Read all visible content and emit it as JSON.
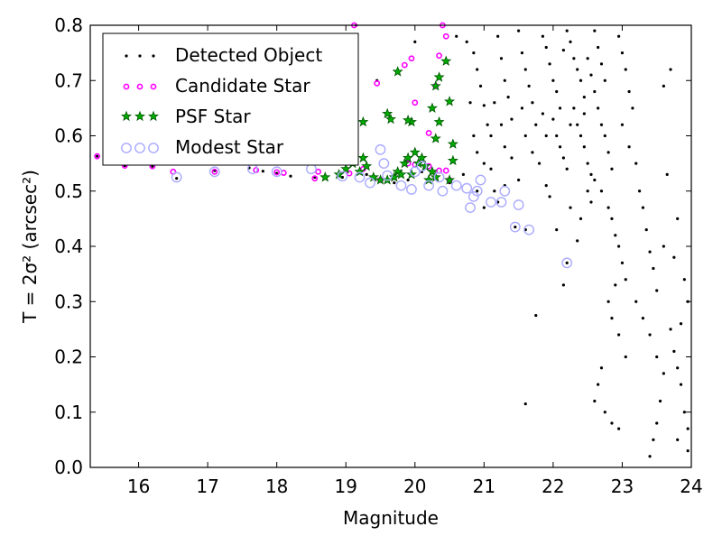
{
  "chart_data": {
    "type": "scatter",
    "title": "",
    "xlabel": "Magnitude",
    "ylabel": "T = 2σ² (arcsec²)",
    "xlim": [
      15.3,
      24.0
    ],
    "ylim": [
      0.0,
      0.8
    ],
    "xticks": [
      "16",
      "17",
      "18",
      "19",
      "20",
      "21",
      "22",
      "23",
      "24"
    ],
    "yticks": [
      "0.0",
      "0.1",
      "0.2",
      "0.3",
      "0.4",
      "0.5",
      "0.6",
      "0.7",
      "0.8"
    ],
    "grid": false,
    "legend_position": "top-left",
    "series": [
      {
        "name": "Detected Object",
        "color": "#000000",
        "marker": "dot",
        "points": [
          [
            15.4,
            0.563
          ],
          [
            15.8,
            0.546
          ],
          [
            16.2,
            0.545
          ],
          [
            16.55,
            0.523
          ],
          [
            17.1,
            0.537
          ],
          [
            17.6,
            0.542
          ],
          [
            17.8,
            0.536
          ],
          [
            18.0,
            0.532
          ],
          [
            18.2,
            0.527
          ],
          [
            18.55,
            0.525
          ],
          [
            18.95,
            0.525
          ],
          [
            19.3,
            0.53
          ],
          [
            19.5,
            0.52
          ],
          [
            19.7,
            0.515
          ],
          [
            19.9,
            0.52
          ],
          [
            20.1,
            0.535
          ],
          [
            20.3,
            0.525
          ],
          [
            20.5,
            0.515
          ],
          [
            20.7,
            0.53
          ],
          [
            20.9,
            0.5
          ],
          [
            21.0,
            0.47
          ],
          [
            21.2,
            0.48
          ],
          [
            21.45,
            0.435
          ],
          [
            21.6,
            0.43
          ],
          [
            22.2,
            0.37
          ],
          [
            19.15,
            0.8
          ],
          [
            19.45,
            0.7
          ],
          [
            20.0,
            0.77
          ],
          [
            20.6,
            0.78
          ],
          [
            20.75,
            0.77
          ],
          [
            20.85,
            0.75
          ],
          [
            20.9,
            0.72
          ],
          [
            20.95,
            0.69
          ],
          [
            21.0,
            0.655
          ],
          [
            21.05,
            0.62
          ],
          [
            21.1,
            0.6
          ],
          [
            20.8,
            0.66
          ],
          [
            20.85,
            0.6
          ],
          [
            20.9,
            0.57
          ],
          [
            21.0,
            0.55
          ],
          [
            21.1,
            0.54
          ],
          [
            21.2,
            0.78
          ],
          [
            21.25,
            0.74
          ],
          [
            21.3,
            0.7
          ],
          [
            21.35,
            0.67
          ],
          [
            21.4,
            0.63
          ],
          [
            21.3,
            0.58
          ],
          [
            21.4,
            0.56
          ],
          [
            21.5,
            0.79
          ],
          [
            21.55,
            0.75
          ],
          [
            21.6,
            0.72
          ],
          [
            21.65,
            0.69
          ],
          [
            21.7,
            0.66
          ],
          [
            21.75,
            0.62
          ],
          [
            21.6,
            0.6
          ],
          [
            21.7,
            0.57
          ],
          [
            21.8,
            0.55
          ],
          [
            21.85,
            0.78
          ],
          [
            21.9,
            0.76
          ],
          [
            21.95,
            0.73
          ],
          [
            22.0,
            0.7
          ],
          [
            22.05,
            0.68
          ],
          [
            22.1,
            0.65
          ],
          [
            22.0,
            0.63
          ],
          [
            22.05,
            0.6
          ],
          [
            22.1,
            0.58
          ],
          [
            22.15,
            0.56
          ],
          [
            22.2,
            0.54
          ],
          [
            22.2,
            0.79
          ],
          [
            22.25,
            0.77
          ],
          [
            22.3,
            0.74
          ],
          [
            22.35,
            0.72
          ],
          [
            22.4,
            0.7
          ],
          [
            22.45,
            0.67
          ],
          [
            22.3,
            0.65
          ],
          [
            22.35,
            0.62
          ],
          [
            22.4,
            0.6
          ],
          [
            22.45,
            0.58
          ],
          [
            22.5,
            0.55
          ],
          [
            22.55,
            0.53
          ],
          [
            22.5,
            0.5
          ],
          [
            22.55,
            0.48
          ],
          [
            22.6,
            0.79
          ],
          [
            22.65,
            0.76
          ],
          [
            22.7,
            0.73
          ],
          [
            22.75,
            0.7
          ],
          [
            22.6,
            0.68
          ],
          [
            22.65,
            0.65
          ],
          [
            22.7,
            0.62
          ],
          [
            22.75,
            0.6
          ],
          [
            22.8,
            0.57
          ],
          [
            22.85,
            0.54
          ],
          [
            22.6,
            0.52
          ],
          [
            22.7,
            0.5
          ],
          [
            22.8,
            0.47
          ],
          [
            22.85,
            0.45
          ],
          [
            22.9,
            0.42
          ],
          [
            22.95,
            0.4
          ],
          [
            23.0,
            0.37
          ],
          [
            23.05,
            0.34
          ],
          [
            22.95,
            0.78
          ],
          [
            23.0,
            0.75
          ],
          [
            23.05,
            0.72
          ],
          [
            23.1,
            0.68
          ],
          [
            23.15,
            0.65
          ],
          [
            23.0,
            0.62
          ],
          [
            23.1,
            0.58
          ],
          [
            23.2,
            0.55
          ],
          [
            23.25,
            0.5
          ],
          [
            23.3,
            0.47
          ],
          [
            23.35,
            0.43
          ],
          [
            23.4,
            0.39
          ],
          [
            23.45,
            0.36
          ],
          [
            23.5,
            0.32
          ],
          [
            23.2,
            0.3
          ],
          [
            23.3,
            0.27
          ],
          [
            23.4,
            0.24
          ],
          [
            23.5,
            0.2
          ],
          [
            23.6,
            0.17
          ],
          [
            23.55,
            0.12
          ],
          [
            23.5,
            0.08
          ],
          [
            23.45,
            0.05
          ],
          [
            23.4,
            0.02
          ],
          [
            22.9,
            0.33
          ],
          [
            22.8,
            0.3
          ],
          [
            22.85,
            0.27
          ],
          [
            22.95,
            0.24
          ],
          [
            23.05,
            0.2
          ],
          [
            22.7,
            0.18
          ],
          [
            22.65,
            0.15
          ],
          [
            22.6,
            0.12
          ],
          [
            22.75,
            0.1
          ],
          [
            22.85,
            0.08
          ],
          [
            22.95,
            0.07
          ],
          [
            23.7,
            0.25
          ],
          [
            23.75,
            0.21
          ],
          [
            23.8,
            0.18
          ],
          [
            23.85,
            0.15
          ],
          [
            23.9,
            0.1
          ],
          [
            23.95,
            0.07
          ],
          [
            23.95,
            0.03
          ],
          [
            23.8,
            0.05
          ],
          [
            23.7,
            0.72
          ],
          [
            23.6,
            0.69
          ],
          [
            23.65,
            0.53
          ],
          [
            23.8,
            0.45
          ],
          [
            23.9,
            0.34
          ],
          [
            23.95,
            0.3
          ],
          [
            23.85,
            0.26
          ],
          [
            23.75,
            0.38
          ],
          [
            23.6,
            0.4
          ],
          [
            21.6,
            0.115
          ],
          [
            21.75,
            0.275
          ],
          [
            22.15,
            0.33
          ],
          [
            22.35,
            0.41
          ],
          [
            22.4,
            0.45
          ],
          [
            21.9,
            0.51
          ],
          [
            21.95,
            0.49
          ],
          [
            22.25,
            0.47
          ],
          [
            22.05,
            0.43
          ],
          [
            21.5,
            0.52
          ],
          [
            21.3,
            0.51
          ],
          [
            21.15,
            0.5
          ],
          [
            22.15,
            0.755
          ],
          [
            22.5,
            0.74
          ],
          [
            22.55,
            0.71
          ],
          [
            21.85,
            0.64
          ],
          [
            22.25,
            0.62
          ],
          [
            21.55,
            0.65
          ],
          [
            21.15,
            0.66
          ],
          [
            21.25,
            0.62
          ],
          [
            21.9,
            0.6
          ],
          [
            22.45,
            0.64
          ]
        ]
      },
      {
        "name": "Candidate Star",
        "color": "#ff00ff",
        "marker": "small-circle",
        "points": [
          [
            15.4,
            0.563
          ],
          [
            15.8,
            0.546
          ],
          [
            16.2,
            0.545
          ],
          [
            16.5,
            0.535
          ],
          [
            17.1,
            0.535
          ],
          [
            17.7,
            0.538
          ],
          [
            18.0,
            0.534
          ],
          [
            18.1,
            0.533
          ],
          [
            18.55,
            0.523
          ],
          [
            18.6,
            0.535
          ],
          [
            19.05,
            0.532
          ],
          [
            19.25,
            0.54
          ],
          [
            19.5,
            0.52
          ],
          [
            19.9,
            0.55
          ],
          [
            20.0,
            0.548
          ],
          [
            20.2,
            0.545
          ],
          [
            20.35,
            0.537
          ],
          [
            20.45,
            0.537
          ],
          [
            20.5,
            0.52
          ],
          [
            19.12,
            0.8
          ],
          [
            19.45,
            0.695
          ],
          [
            19.85,
            0.728
          ],
          [
            19.95,
            0.74
          ],
          [
            20.0,
            0.66
          ],
          [
            20.35,
            0.745
          ],
          [
            20.4,
            0.8
          ],
          [
            20.45,
            0.78
          ],
          [
            20.3,
            0.69
          ],
          [
            20.2,
            0.605
          ]
        ]
      },
      {
        "name": "PSF Star",
        "color": "#00aa00",
        "marker": "star",
        "points": [
          [
            18.7,
            0.525
          ],
          [
            18.9,
            0.53
          ],
          [
            19.0,
            0.54
          ],
          [
            19.1,
            0.55
          ],
          [
            19.2,
            0.535
          ],
          [
            19.25,
            0.56
          ],
          [
            19.3,
            0.545
          ],
          [
            19.4,
            0.525
          ],
          [
            19.5,
            0.52
          ],
          [
            19.6,
            0.52
          ],
          [
            19.7,
            0.525
          ],
          [
            19.75,
            0.535
          ],
          [
            19.8,
            0.53
          ],
          [
            19.85,
            0.55
          ],
          [
            19.9,
            0.56
          ],
          [
            19.95,
            0.53
          ],
          [
            20.0,
            0.57
          ],
          [
            20.05,
            0.55
          ],
          [
            20.1,
            0.56
          ],
          [
            20.15,
            0.545
          ],
          [
            20.2,
            0.52
          ],
          [
            20.25,
            0.535
          ],
          [
            20.3,
            0.525
          ],
          [
            20.5,
            0.52
          ],
          [
            20.55,
            0.555
          ],
          [
            20.55,
            0.585
          ],
          [
            20.3,
            0.595
          ],
          [
            19.95,
            0.625
          ],
          [
            19.9,
            0.628
          ],
          [
            19.6,
            0.64
          ],
          [
            19.65,
            0.63
          ],
          [
            19.25,
            0.625
          ],
          [
            20.25,
            0.65
          ],
          [
            20.3,
            0.69
          ],
          [
            20.35,
            0.706
          ],
          [
            20.45,
            0.735
          ],
          [
            20.5,
            0.662
          ],
          [
            19.75,
            0.716
          ],
          [
            20.35,
            0.625
          ]
        ]
      },
      {
        "name": "Modest Star",
        "color": "#aaaaff",
        "marker": "open-circle",
        "points": [
          [
            15.8,
            0.578
          ],
          [
            15.95,
            0.575
          ],
          [
            16.55,
            0.525
          ],
          [
            17.1,
            0.535
          ],
          [
            17.65,
            0.54
          ],
          [
            18.0,
            0.535
          ],
          [
            18.5,
            0.54
          ],
          [
            18.95,
            0.527
          ],
          [
            19.2,
            0.525
          ],
          [
            19.35,
            0.515
          ],
          [
            19.5,
            0.575
          ],
          [
            19.55,
            0.55
          ],
          [
            19.6,
            0.528
          ],
          [
            19.8,
            0.51
          ],
          [
            19.95,
            0.503
          ],
          [
            20.0,
            0.535
          ],
          [
            20.1,
            0.545
          ],
          [
            20.2,
            0.51
          ],
          [
            20.35,
            0.525
          ],
          [
            20.6,
            0.51
          ],
          [
            20.75,
            0.505
          ],
          [
            20.8,
            0.47
          ],
          [
            20.85,
            0.49
          ],
          [
            20.9,
            0.5
          ],
          [
            21.1,
            0.48
          ],
          [
            21.25,
            0.48
          ],
          [
            21.3,
            0.5
          ],
          [
            21.45,
            0.435
          ],
          [
            21.5,
            0.475
          ],
          [
            21.65,
            0.43
          ],
          [
            22.2,
            0.37
          ],
          [
            20.4,
            0.5
          ],
          [
            20.95,
            0.52
          ]
        ]
      }
    ]
  }
}
